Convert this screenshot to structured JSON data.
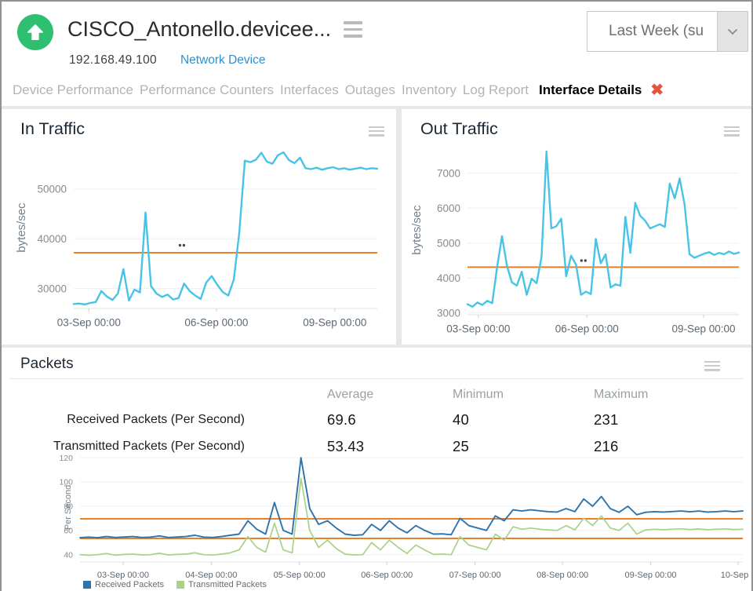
{
  "header": {
    "title": "CISCO_Antonello.devicee...",
    "ip": "192.168.49.100",
    "device_type": "Network Device",
    "status_icon": "up-arrow-in-green-circle",
    "status_color": "#2ebf70",
    "menu_icon": "hamburger",
    "time_range": {
      "value": "Last Week (su",
      "icon": "chevron-down"
    }
  },
  "tabs": {
    "items": [
      {
        "label": "Device Performance",
        "active": false
      },
      {
        "label": "Performance Counters",
        "active": false
      },
      {
        "label": "Interfaces",
        "active": false
      },
      {
        "label": "Outages",
        "active": false
      },
      {
        "label": "Inventory",
        "active": false
      },
      {
        "label": "Log Report",
        "active": false
      },
      {
        "label": "Interface Details",
        "active": true
      }
    ],
    "close_glyph": "✖",
    "close_color": "#e8533e"
  },
  "packets_table": {
    "title": "Packets",
    "columns": [
      "Average",
      "Minimum",
      "Maximum"
    ],
    "rows": [
      {
        "label": "Received Packets (Per Second)",
        "average": "69.6",
        "minimum": "40",
        "maximum": "231"
      },
      {
        "label": "Transmitted Packets (Per Second)",
        "average": "53.43",
        "minimum": "25",
        "maximum": "216"
      }
    ]
  },
  "chart_data": [
    {
      "id": "in-traffic",
      "type": "line",
      "title": "In Traffic",
      "y_label": "bytes/sec",
      "y_min": 26000,
      "y_max": 58500,
      "y_ticks": [
        {
          "v": 30000,
          "label": "30000"
        },
        {
          "v": 40000,
          "label": "40000"
        },
        {
          "v": 50000,
          "label": "50000"
        }
      ],
      "x_ticks": [
        {
          "f": 0.05,
          "label": "03-Sep 00:00"
        },
        {
          "f": 0.47,
          "label": "06-Sep 00:00"
        },
        {
          "f": 0.86,
          "label": "09-Sep 00:00"
        }
      ],
      "thresholds": [
        37200
      ],
      "threshold_color": "#e87f2b",
      "grid": true,
      "legend_position": "none",
      "marker": {
        "f": 0.35,
        "v": 38700
      },
      "pad": {
        "l": 92,
        "r": 24,
        "t": 8,
        "b": 44
      },
      "tick_font": 13.5,
      "x_font": 13.5,
      "y_label_font": 15,
      "y_label_x": 30,
      "series": [
        {
          "name": "In Traffic",
          "color": "#48c3e8",
          "width": 2.4,
          "values": [
            26900,
            27000,
            26800,
            27100,
            27300,
            29500,
            28400,
            27700,
            29000,
            33900,
            27600,
            29800,
            29200,
            45300,
            30500,
            29000,
            28300,
            28800,
            27800,
            28100,
            31000,
            29500,
            28600,
            27900,
            31200,
            32500,
            30800,
            29300,
            28600,
            31800,
            41300,
            55700,
            55400,
            55900,
            57300,
            55500,
            55100,
            56800,
            57400,
            55800,
            55200,
            56300,
            54200,
            54000,
            54300,
            53900,
            54200,
            54400,
            54000,
            54200,
            53900,
            54100,
            54300,
            54000,
            54200,
            54100
          ]
        }
      ]
    },
    {
      "id": "out-traffic",
      "type": "line",
      "title": "Out Traffic",
      "y_label": "bytes/sec",
      "y_min": 2950,
      "y_max": 7800,
      "y_ticks": [
        {
          "v": 3000,
          "label": "3000"
        },
        {
          "v": 4000,
          "label": "4000"
        },
        {
          "v": 5000,
          "label": "5000"
        },
        {
          "v": 6000,
          "label": "6000"
        },
        {
          "v": 7000,
          "label": "7000"
        }
      ],
      "x_ticks": [
        {
          "f": 0.04,
          "label": "03-Sep 00:00"
        },
        {
          "f": 0.44,
          "label": "06-Sep 00:00"
        },
        {
          "f": 0.87,
          "label": "09-Sep 00:00"
        }
      ],
      "thresholds": [
        4310
      ],
      "threshold_color": "#e87f2b",
      "grid": true,
      "legend_position": "none",
      "marker": {
        "f": 0.42,
        "v": 4500
      },
      "pad": {
        "l": 84,
        "r": 16,
        "t": 6,
        "b": 36
      },
      "tick_font": 13.5,
      "x_font": 13.5,
      "y_label_font": 15,
      "y_label_x": 24,
      "series": [
        {
          "name": "Out Traffic",
          "color": "#48c3e8",
          "width": 2.4,
          "values": [
            3250,
            3180,
            3300,
            3230,
            3350,
            3280,
            4300,
            5200,
            4350,
            3880,
            3780,
            4180,
            3520,
            3980,
            3850,
            4600,
            7620,
            5420,
            5480,
            5700,
            4050,
            4640,
            4380,
            3520,
            3610,
            3540,
            5120,
            4420,
            4680,
            3730,
            3820,
            3780,
            5750,
            4720,
            6150,
            5780,
            5640,
            5420,
            5480,
            5540,
            5460,
            6700,
            6280,
            6850,
            6100,
            4680,
            4580,
            4640,
            4700,
            4740,
            4660,
            4720,
            4680,
            4760,
            4690,
            4730
          ]
        }
      ]
    },
    {
      "id": "packets",
      "type": "line",
      "title": "Packets",
      "y_label": "Per Second",
      "y_min": 34,
      "y_max": 124,
      "y_ticks": [
        {
          "v": 40,
          "label": "40"
        },
        {
          "v": 60,
          "label": "60"
        },
        {
          "v": 80,
          "label": "80"
        },
        {
          "v": 100,
          "label": "100"
        },
        {
          "v": 120,
          "label": "120"
        }
      ],
      "x_ticks": [
        {
          "f": 0.065,
          "label": "03-Sep 00:00"
        },
        {
          "f": 0.198,
          "label": "04-Sep 00:00"
        },
        {
          "f": 0.331,
          "label": "05-Sep 00:00"
        },
        {
          "f": 0.463,
          "label": "06-Sep 00:00"
        },
        {
          "f": 0.596,
          "label": "07-Sep 00:00"
        },
        {
          "f": 0.728,
          "label": "08-Sep 00:00"
        },
        {
          "f": 0.861,
          "label": "09-Sep 00:00"
        },
        {
          "f": 0.993,
          "label": "10-Sep .."
        }
      ],
      "thresholds": [
        69.6,
        53.43
      ],
      "threshold_color": "#e87f2b",
      "grid": true,
      "legend_position": "bottom-left",
      "pad": {
        "l": 100,
        "r": 11,
        "t": 4,
        "b": 27
      },
      "tick_font": 10.5,
      "x_font": 11,
      "y_label_font": 11,
      "y_label_x": 88,
      "series": [
        {
          "name": "Received Packets",
          "color": "#2d74ad",
          "width": 1.9,
          "values": [
            54,
            54.5,
            54,
            55,
            54.2,
            54.6,
            55,
            54.2,
            54.5,
            55.5,
            54.2,
            54.6,
            55,
            56,
            54.5,
            54.2,
            55,
            56,
            57,
            68,
            61,
            57,
            83,
            60,
            57,
            120,
            78,
            65,
            68,
            62,
            57,
            56,
            56.5,
            65,
            60,
            68,
            62,
            58,
            64,
            60,
            57,
            57.2,
            56.5,
            70,
            64,
            62,
            60,
            72,
            68,
            77,
            76,
            77,
            76.2,
            75.5,
            75.2,
            78,
            75.5,
            86,
            80,
            88,
            78,
            75,
            80,
            73,
            75,
            75.5,
            75.2,
            75.6,
            76,
            75.4,
            76,
            75.2,
            75.5,
            76,
            75.5,
            76
          ]
        },
        {
          "name": "Transmitted Packets",
          "color": "#a8d287",
          "width": 1.7,
          "values": [
            40,
            39.5,
            40,
            41,
            39.6,
            40.2,
            40.5,
            39.8,
            40,
            41.2,
            39.8,
            40.2,
            40.5,
            41.5,
            40,
            39.7,
            40.5,
            41.5,
            44,
            55,
            46,
            42,
            66,
            44,
            41.5,
            103,
            60,
            46,
            52,
            45,
            40.5,
            39.8,
            40,
            50,
            44,
            52,
            46,
            41,
            48,
            44,
            40.2,
            40.5,
            40,
            55,
            48,
            46,
            44,
            57,
            52,
            63,
            61,
            62,
            61,
            60.5,
            60,
            64,
            60.5,
            70,
            64,
            72,
            62,
            60,
            66,
            57,
            60.5,
            61,
            60.6,
            61,
            61.4,
            60.8,
            61.2,
            60.6,
            61,
            61.3,
            60.8,
            61
          ]
        }
      ]
    }
  ]
}
